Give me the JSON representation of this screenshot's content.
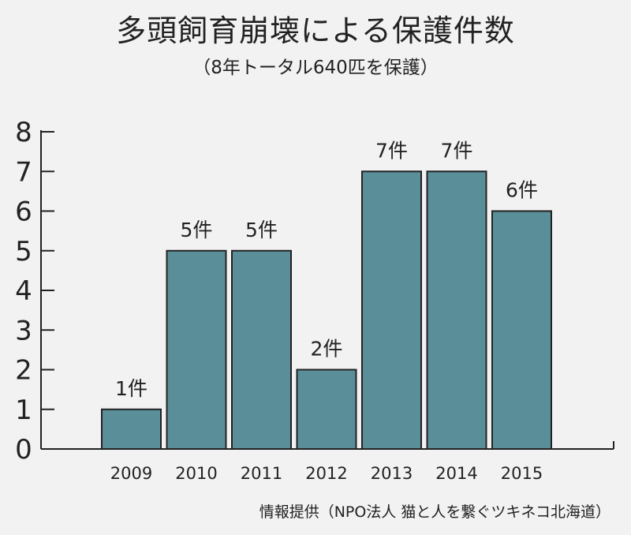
{
  "chart_data": {
    "type": "bar",
    "title": "多頭飼育崩壊による保護件数",
    "subtitle": "（8年トータル640匹を保護）",
    "categories": [
      "2009",
      "2010",
      "2011",
      "2012",
      "2013",
      "2014",
      "2015"
    ],
    "values": [
      1,
      5,
      5,
      2,
      7,
      7,
      6
    ],
    "data_labels": [
      "1件",
      "5件",
      "5件",
      "2件",
      "7件",
      "7件",
      "6件"
    ],
    "ylim": [
      0,
      8
    ],
    "yticks": [
      "0",
      "1",
      "2",
      "3",
      "4",
      "5",
      "6",
      "7",
      "8"
    ],
    "xlabel": "",
    "ylabel": "",
    "bar_color": "#5a8f9a",
    "grid": false
  },
  "credit": "情報提供（NPO法人 猫と人を繋ぐツキネコ北海道）"
}
